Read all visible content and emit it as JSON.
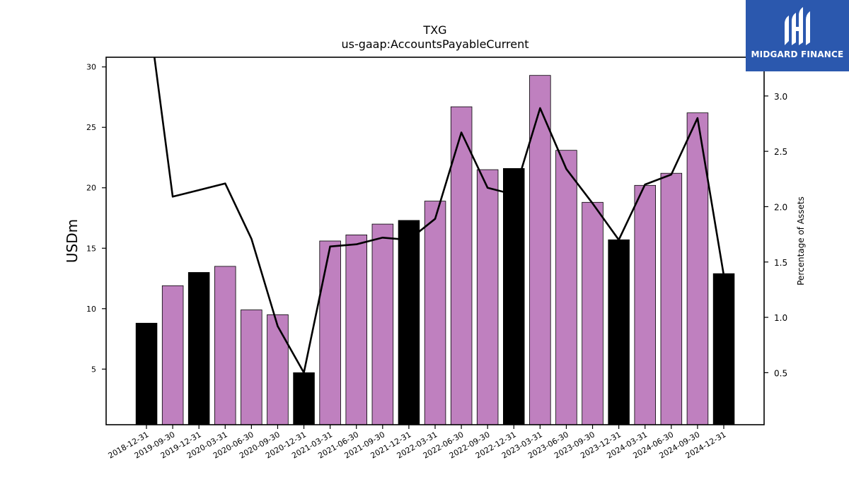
{
  "chart_data": {
    "type": "bar",
    "title": "TXG",
    "subtitle": "us-gaap:AccountsPayableCurrent",
    "ylabel": "USDm",
    "ylabel_right": "Percentage of Assets",
    "ylim": [
      0.4,
      30.8
    ],
    "ylim_right": [
      0.03,
      3.35
    ],
    "yticks": [
      5,
      10,
      15,
      20,
      25,
      30
    ],
    "yticks_right": [
      0.5,
      1.0,
      1.5,
      2.0,
      2.5,
      3.0
    ],
    "categories": [
      "2018-12-31",
      "2019-09-30",
      "2019-12-31",
      "2020-03-31",
      "2020-06-30",
      "2020-09-30",
      "2020-12-31",
      "2021-03-31",
      "2021-06-30",
      "2021-09-30",
      "2021-12-31",
      "2022-03-31",
      "2022-06-30",
      "2022-09-30",
      "2022-12-31",
      "2023-03-31",
      "2023-06-30",
      "2023-09-30",
      "2023-12-31",
      "2024-03-31",
      "2024-06-30",
      "2024-09-30",
      "2024-12-31"
    ],
    "series": [
      {
        "type": "bar",
        "values": [
          8.8,
          11.9,
          13.0,
          13.5,
          9.9,
          9.5,
          4.7,
          15.6,
          16.1,
          17.0,
          17.3,
          18.9,
          26.7,
          21.5,
          21.6,
          29.3,
          23.1,
          18.8,
          15.7,
          20.2,
          21.2,
          26.2,
          12.9
        ]
      },
      {
        "type": "line",
        "axis": "right",
        "values": [
          3.9,
          2.09,
          2.15,
          2.21,
          1.71,
          0.92,
          0.5,
          1.64,
          1.66,
          1.72,
          1.7,
          1.89,
          2.67,
          2.17,
          2.11,
          2.89,
          2.34,
          2.03,
          1.7,
          2.2,
          2.29,
          2.8,
          1.38
        ]
      }
    ],
    "bar_colors": {
      "annual": "#000000",
      "quarterly": "#bf80bf"
    },
    "annual_categories": [
      "2018-12-31",
      "2019-12-31",
      "2020-12-31",
      "2021-12-31",
      "2022-12-31",
      "2023-12-31",
      "2024-12-31"
    ],
    "line_color": "#000000",
    "grid": false,
    "legend": "none"
  },
  "logo": {
    "brand": "MIDGARD FINANCE",
    "icon": "midgard-m-icon",
    "background": "#2b58ae"
  }
}
